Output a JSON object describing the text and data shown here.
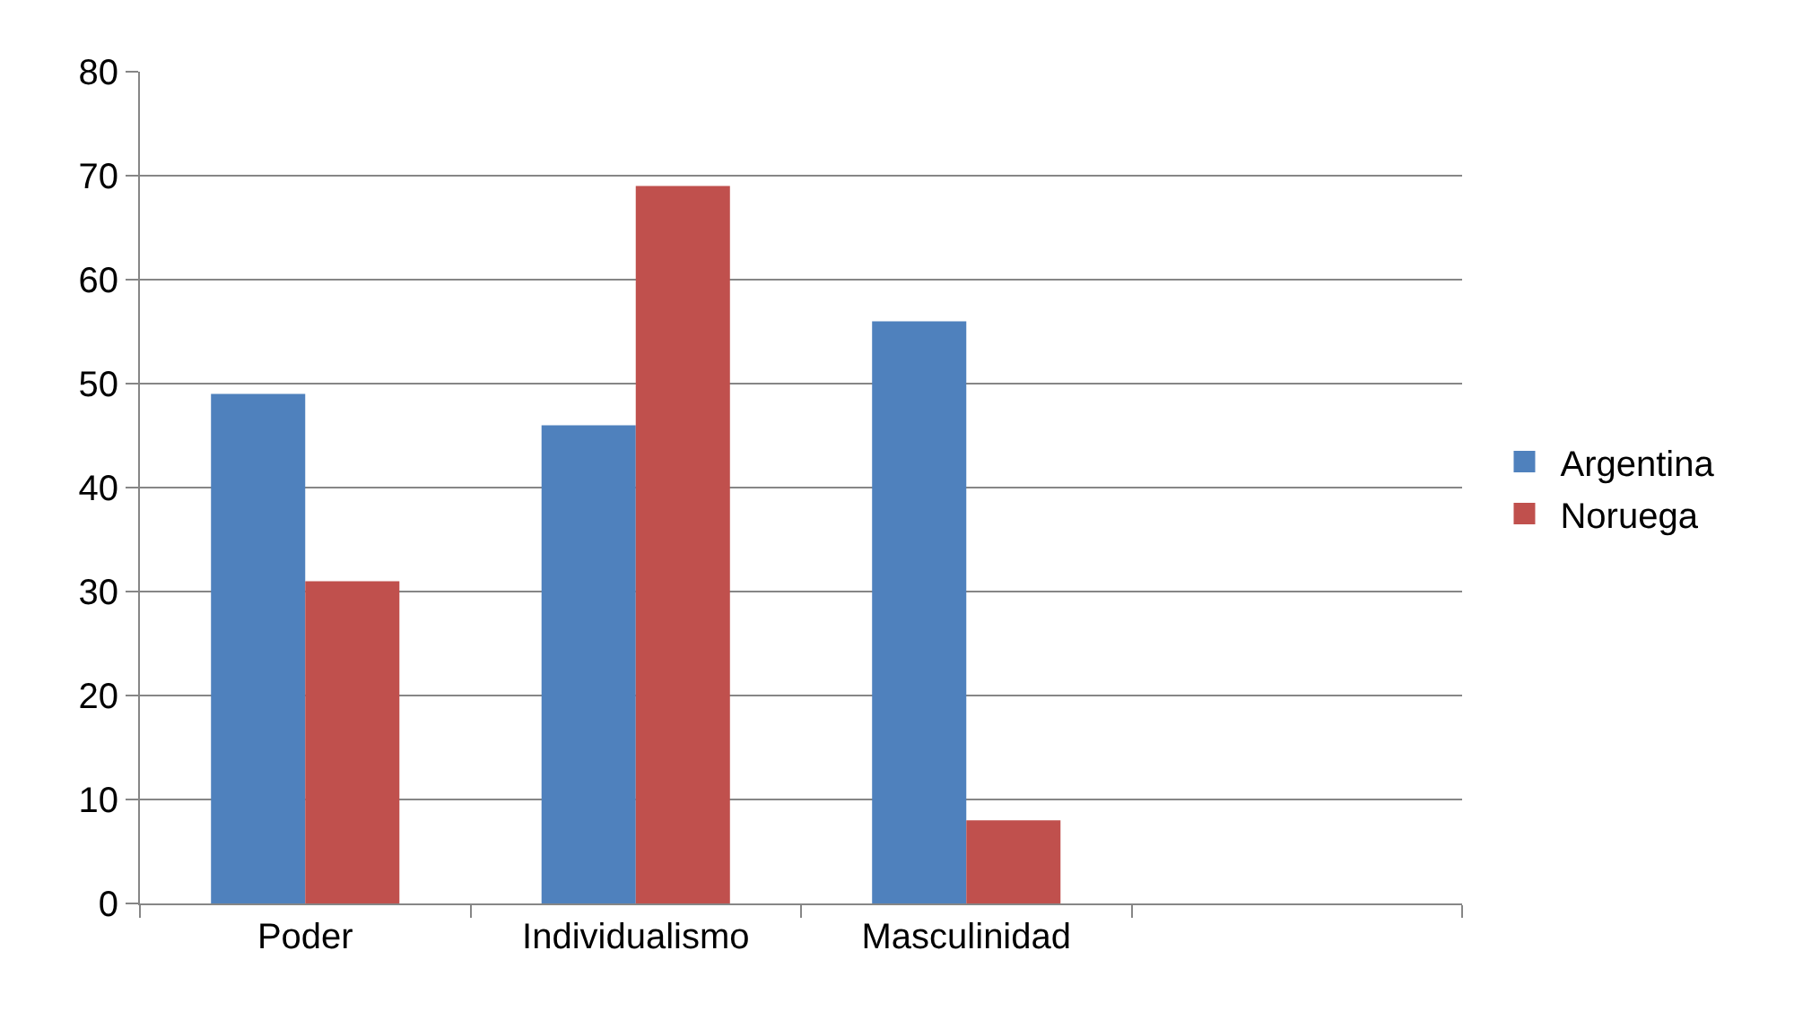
{
  "chart_data": {
    "type": "bar",
    "categories": [
      "Poder",
      "Individualismo",
      "Masculinidad",
      null
    ],
    "series": [
      {
        "name": "Argentina",
        "color": "#4f81bd",
        "values": [
          49,
          46,
          56,
          null
        ]
      },
      {
        "name": "Noruega",
        "color": "#c0504d",
        "values": [
          31,
          69,
          8,
          null
        ]
      }
    ],
    "ylim": [
      0,
      80
    ],
    "yticks": [
      0,
      10,
      20,
      30,
      40,
      50,
      60,
      70,
      80
    ],
    "grid": "y",
    "legend": "right"
  }
}
